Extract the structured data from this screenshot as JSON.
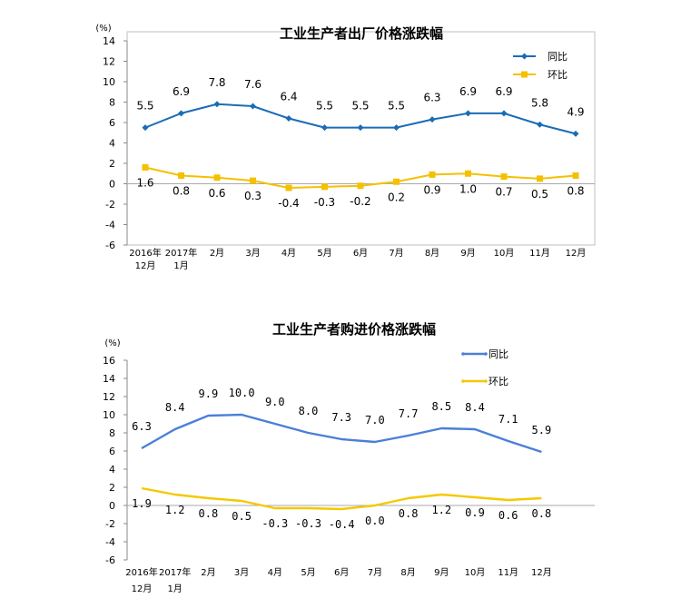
{
  "chart_data": [
    {
      "type": "line",
      "title": "工业生产者出厂价格涨跌幅",
      "unit": "(%)",
      "categories": [
        [
          "2016年",
          "12月"
        ],
        [
          "2017年",
          "1月"
        ],
        [
          "2月"
        ],
        [
          "3月"
        ],
        [
          "4月"
        ],
        [
          "5月"
        ],
        [
          "6月"
        ],
        [
          "7月"
        ],
        [
          "8月"
        ],
        [
          "9月"
        ],
        [
          "10月"
        ],
        [
          "11月"
        ],
        [
          "12月"
        ]
      ],
      "ylim": [
        -6,
        14
      ],
      "yticks": [
        "14",
        "12",
        "10",
        "8",
        "6",
        "4",
        "2",
        "0",
        "-2",
        "-4",
        "-6"
      ],
      "legend_position": "top-right",
      "series": [
        {
          "name": "同比",
          "color": "#1a6cb5",
          "marker": "diamond",
          "values": [
            5.5,
            6.9,
            7.8,
            7.6,
            6.4,
            5.5,
            5.5,
            5.5,
            6.3,
            6.9,
            6.9,
            5.8,
            4.9
          ],
          "labels": [
            "5.5",
            "6.9",
            "7.8",
            "7.6",
            "6.4",
            "5.5",
            "5.5",
            "5.5",
            "6.3",
            "6.9",
            "6.9",
            "5.8",
            "4.9"
          ]
        },
        {
          "name": "环比",
          "color": "#f5c000",
          "marker": "square",
          "values": [
            1.6,
            0.8,
            0.6,
            0.3,
            -0.4,
            -0.3,
            -0.2,
            0.2,
            0.9,
            1.0,
            0.7,
            0.5,
            0.8
          ],
          "labels": [
            "1.6",
            "0.8",
            "0.6",
            "0.3",
            "-0.4",
            "-0.3",
            "-0.2",
            "0.2",
            "0.9",
            "1.0",
            "0.7",
            "0.5",
            "0.8"
          ]
        }
      ]
    },
    {
      "type": "line",
      "title": "工业生产者购进价格涨跌幅",
      "unit": "(%)",
      "categories": [
        [
          "2016年",
          "12月"
        ],
        [
          "2017年",
          "1月"
        ],
        [
          "2月"
        ],
        [
          "3月"
        ],
        [
          "4月"
        ],
        [
          "5月"
        ],
        [
          "6月"
        ],
        [
          "7月"
        ],
        [
          "8月"
        ],
        [
          "9月"
        ],
        [
          "10月"
        ],
        [
          "11月"
        ],
        [
          "12月"
        ]
      ],
      "ylim": [
        -6,
        16
      ],
      "yticks": [
        "16",
        "14",
        "12",
        "10",
        "8",
        "6",
        "4",
        "2",
        "0",
        "-2",
        "-4",
        "-6"
      ],
      "legend_position": "top-right",
      "series": [
        {
          "name": "同比",
          "color": "#4a7fd8",
          "marker": "none",
          "values": [
            6.3,
            8.4,
            9.9,
            10.0,
            9.0,
            8.0,
            7.3,
            7.0,
            7.7,
            8.5,
            8.4,
            7.1,
            5.9
          ],
          "labels": [
            "6.3",
            "8.4",
            "9.9",
            "10.0",
            "9.0",
            "8.0",
            "7.3",
            "7.0",
            "7.7",
            "8.5",
            "8.4",
            "7.1",
            "5.9"
          ]
        },
        {
          "name": "环比",
          "color": "#f5c800",
          "marker": "none",
          "values": [
            1.9,
            1.2,
            0.8,
            0.5,
            -0.3,
            -0.3,
            -0.4,
            0.0,
            0.8,
            1.2,
            0.9,
            0.6,
            0.8
          ],
          "labels": [
            "1.9",
            "1.2",
            "0.8",
            "0.5",
            "-0.3",
            "-0.3",
            "-0.4",
            "0.0",
            "0.8",
            "1.2",
            "0.9",
            "0.6",
            "0.8"
          ]
        }
      ]
    }
  ]
}
